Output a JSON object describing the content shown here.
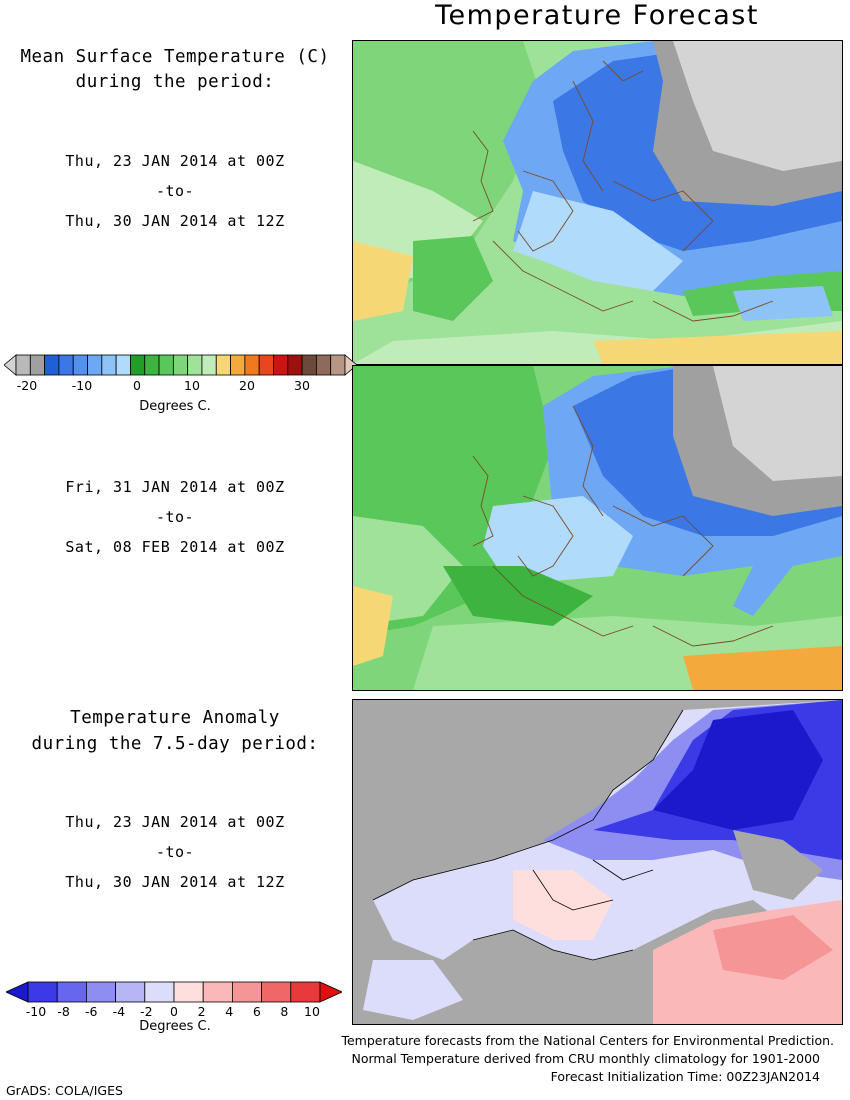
{
  "title": "Temperature Forecast",
  "panel1": {
    "heading_line1": "Mean Surface Temperature (C)",
    "heading_line2": "during the period:",
    "start": "Thu, 23 JAN 2014 at 00Z",
    "sep": "-to-",
    "end": "Thu, 30 JAN 2014 at 12Z"
  },
  "panel2": {
    "start": "Fri, 31 JAN 2014 at 00Z",
    "sep": "-to-",
    "end": "Sat, 08 FEB 2014 at 00Z"
  },
  "panel3": {
    "heading_line1": "Temperature Anomaly",
    "heading_line2": "during the 7.5-day period:",
    "start": "Thu, 23 JAN 2014 at 00Z",
    "sep": "-to-",
    "end": "Thu, 30 JAN 2014 at 12Z"
  },
  "temp_scale": {
    "colors": [
      "#d4d4d4",
      "#b9b9b9",
      "#a0a0a0",
      "#1f5fd8",
      "#3b78e6",
      "#5391ee",
      "#6ea8f4",
      "#8ec3f8",
      "#b0dbfb",
      "#1f9e2a",
      "#3cb43f",
      "#5ac75a",
      "#7fd67a",
      "#a0e29a",
      "#c0ecba",
      "#f6d775",
      "#f3a93c",
      "#ef7a1e",
      "#e8461c",
      "#cc1414",
      "#9e0f0f",
      "#6b4a3a",
      "#8e6a5a",
      "#b89684",
      "#e2c8b8"
    ],
    "ticks": [
      "-20",
      "-10",
      "0",
      "10",
      "20",
      "30"
    ],
    "caption": "Degrees C."
  },
  "anom_scale": {
    "colors": [
      "#1a1acc",
      "#3a3ae6",
      "#6666ee",
      "#8e8ef2",
      "#b6b6f6",
      "#dcdcfb",
      "#ffdede",
      "#fbb8b8",
      "#f59595",
      "#ee6868",
      "#e83a3a",
      "#e01010"
    ],
    "ticks": [
      "-10",
      "-8",
      "-6",
      "-4",
      "-2",
      "0",
      "2",
      "4",
      "6",
      "8",
      "10"
    ],
    "caption": "Degrees C."
  },
  "footer": {
    "line1": "Temperature forecasts from the National Centers for Environmental Prediction.",
    "line2": "Normal Temperature derived from CRU monthly climatology for 1901-2000",
    "line3": "Forecast Initialization Time: 00Z23JAN2014",
    "grads": "GrADS: COLA/IGES"
  }
}
